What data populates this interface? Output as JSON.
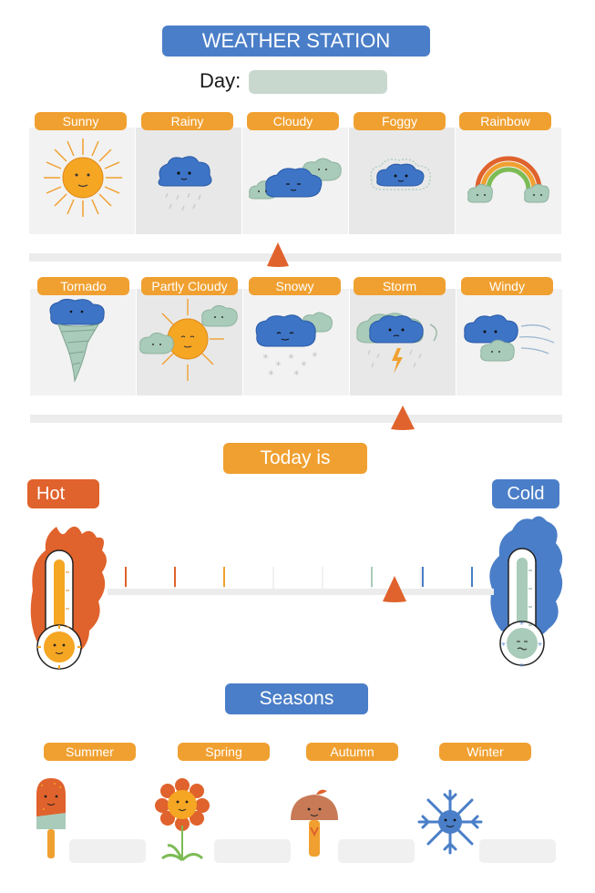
{
  "header": {
    "title": "WEATHER STATION",
    "day_label": "Day:"
  },
  "weather_row1": [
    {
      "label": "Sunny",
      "icon": "sun-icon"
    },
    {
      "label": "Rainy",
      "icon": "rain-cloud-icon"
    },
    {
      "label": "Cloudy",
      "icon": "clouds-icon"
    },
    {
      "label": "Foggy",
      "icon": "fog-cloud-icon"
    },
    {
      "label": "Rainbow",
      "icon": "rainbow-icon"
    }
  ],
  "weather_row2": [
    {
      "label": "Tornado",
      "icon": "tornado-icon"
    },
    {
      "label": "Partly Cloudy",
      "icon": "partly-cloudy-icon"
    },
    {
      "label": "Snowy",
      "icon": "snow-cloud-icon"
    },
    {
      "label": "Storm",
      "icon": "storm-cloud-icon"
    },
    {
      "label": "Windy",
      "icon": "wind-clouds-icon"
    }
  ],
  "temperature": {
    "title": "Today is",
    "hot_label": "Hot",
    "cold_label": "Cold"
  },
  "seasons": {
    "title": "Seasons",
    "items": [
      {
        "label": "Summer",
        "icon": "popsicle-icon"
      },
      {
        "label": "Spring",
        "icon": "flower-icon"
      },
      {
        "label": "Autumn",
        "icon": "mushroom-icon"
      },
      {
        "label": "Winter",
        "icon": "snowflake-icon"
      }
    ]
  },
  "colors": {
    "blue": "#4a7ec8",
    "orange": "#f0a030",
    "red_orange": "#e0622c"
  }
}
